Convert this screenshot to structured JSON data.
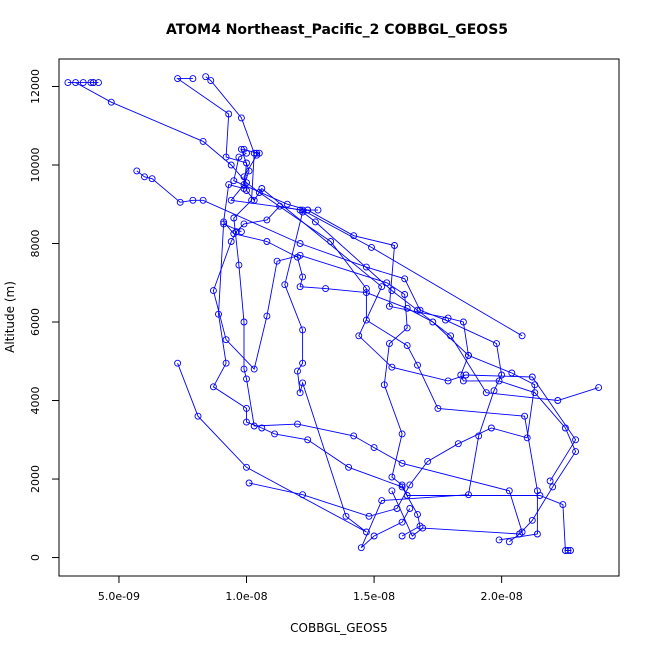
{
  "chart_data": {
    "type": "scatter",
    "title": "ATOM4 Northeast_Pacific_2 COBBGL_GEOS5",
    "xlabel": "COBBGL_GEOS5",
    "ylabel": "Altitude (m)",
    "xlim": [
      2.65e-09,
      2.46e-08
    ],
    "ylim": [
      -470,
      12700
    ],
    "xticks": [
      5e-09,
      1e-08,
      1.5e-08,
      2e-08
    ],
    "xtick_labels": [
      "5.0e-09",
      "1.0e-08",
      "1.5e-08",
      "2.0e-08"
    ],
    "yticks": [
      0,
      2000,
      4000,
      6000,
      8000,
      10000,
      12000
    ],
    "ytick_labels": [
      "0",
      "2000",
      "4000",
      "6000",
      "8000",
      "10000",
      "12000"
    ],
    "grid": false,
    "line_color": "#0000ff",
    "marker": "open-circle",
    "series": [
      {
        "values": [
          [
            2.27e-08,
            180
          ],
          [
            2.26e-08,
            180
          ],
          [
            2.25e-08,
            180
          ],
          [
            2.24e-08,
            1350
          ],
          [
            2.15e-08,
            1580
          ],
          [
            1.63e-08,
            1580
          ],
          [
            1.61e-08,
            1850
          ],
          [
            1.57e-08,
            2050
          ],
          [
            1.61e-08,
            3150
          ],
          [
            1.54e-08,
            4400
          ],
          [
            1.56e-08,
            5450
          ],
          [
            1.63e-08,
            5850
          ],
          [
            1.62e-08,
            6700
          ],
          [
            1.55e-08,
            7000
          ],
          [
            1.21e-08,
            7700
          ],
          [
            1.12e-08,
            7550
          ],
          [
            1.08e-08,
            6150
          ],
          [
            1.03e-08,
            4800
          ],
          [
            9.2e-09,
            5550
          ],
          [
            8.7e-09,
            6800
          ],
          [
            9.4e-09,
            8050
          ],
          [
            9.6e-09,
            8300
          ],
          [
            9.9e-09,
            8500
          ],
          [
            1.08e-08,
            8600
          ],
          [
            1.13e-08,
            8950
          ],
          [
            1.21e-08,
            8850
          ],
          [
            1.27e-08,
            8550
          ],
          [
            1.57e-08,
            6800
          ],
          [
            1.67e-08,
            6300
          ],
          [
            1.8e-08,
            5650
          ],
          [
            1.94e-08,
            4200
          ],
          [
            2.22e-08,
            4000
          ],
          [
            2.38e-08,
            4330
          ]
        ]
      },
      {
        "values": [
          [
            2.08e-08,
            5650
          ],
          [
            1.49e-08,
            7900
          ],
          [
            1.22e-08,
            8850
          ],
          [
            9.4e-09,
            9100
          ],
          [
            9.9e-09,
            9500
          ],
          [
            1.01e-08,
            9850
          ],
          [
            9.8e-09,
            10400
          ],
          [
            9.9e-09,
            10400
          ],
          [
            1.04e-08,
            10300
          ],
          [
            1.05e-08,
            10300
          ],
          [
            1.04e-08,
            10250
          ],
          [
            9.9e-09,
            9700
          ],
          [
            1e-08,
            9350
          ],
          [
            1.03e-08,
            9100
          ],
          [
            1.06e-08,
            9400
          ],
          [
            1.53e-08,
            6900
          ],
          [
            1.44e-08,
            5650
          ],
          [
            1.57e-08,
            4850
          ],
          [
            1.79e-08,
            4500
          ],
          [
            1.86e-08,
            4650
          ],
          [
            2.12e-08,
            4600
          ],
          [
            2.29e-08,
            3000
          ],
          [
            2.19e-08,
            1950
          ]
        ]
      },
      {
        "values": [
          [
            1.01e-08,
            1900
          ],
          [
            1.22e-08,
            1600
          ],
          [
            1.48e-08,
            1050
          ],
          [
            1.59e-08,
            1250
          ],
          [
            1.64e-08,
            1850
          ],
          [
            1.71e-08,
            2450
          ],
          [
            1.83e-08,
            2900
          ],
          [
            1.96e-08,
            3300
          ],
          [
            2.1e-08,
            3050
          ],
          [
            2.13e-08,
            4400
          ],
          [
            2.04e-08,
            4700
          ],
          [
            1.87e-08,
            5150
          ],
          [
            1.85e-08,
            6000
          ],
          [
            1.79e-08,
            6100
          ],
          [
            1.56e-08,
            6400
          ],
          [
            1.58e-08,
            7950
          ],
          [
            1.42e-08,
            8200
          ],
          [
            1.24e-08,
            8850
          ],
          [
            1.16e-08,
            9000
          ],
          [
            9.5e-09,
            9600
          ],
          [
            9.7e-09,
            10200
          ],
          [
            1e-08,
            10300
          ]
        ]
      },
      {
        "values": [
          [
            7.9e-09,
            12200
          ],
          [
            7.3e-09,
            12200
          ],
          [
            9.3e-09,
            11300
          ],
          [
            9.2e-09,
            10200
          ],
          [
            1e-08,
            10050
          ],
          [
            9.9e-09,
            9400
          ],
          [
            9.3e-09,
            9500
          ],
          [
            9.1e-09,
            8550
          ],
          [
            9.5e-09,
            8250
          ],
          [
            1.08e-08,
            8050
          ],
          [
            1.2e-08,
            7650
          ],
          [
            1.22e-08,
            7150
          ],
          [
            1.21e-08,
            6900
          ],
          [
            1.31e-08,
            6850
          ],
          [
            1.47e-08,
            6750
          ],
          [
            1.63e-08,
            6350
          ],
          [
            1.73e-08,
            6000
          ],
          [
            1.87e-08,
            5150
          ],
          [
            1.84e-08,
            4650
          ],
          [
            1.85e-08,
            4500
          ],
          [
            1.99e-08,
            4500
          ],
          [
            2.13e-08,
            4200
          ],
          [
            2.25e-08,
            3300
          ],
          [
            2.29e-08,
            2700
          ],
          [
            2.2e-08,
            1800
          ],
          [
            2.12e-08,
            950
          ],
          [
            2.07e-08,
            600
          ],
          [
            1.69e-08,
            750
          ],
          [
            1.65e-08,
            550
          ],
          [
            1.57e-08,
            1700
          ]
        ]
      },
      {
        "values": [
          [
            3e-09,
            12100
          ],
          [
            3.6e-09,
            12100
          ],
          [
            4e-09,
            12100
          ],
          [
            4.2e-09,
            12100
          ],
          [
            3.9e-09,
            12100
          ],
          [
            4e-09,
            12100
          ],
          [
            3.3e-09,
            12100
          ],
          [
            4.7e-09,
            11600
          ],
          [
            8.3e-09,
            10600
          ],
          [
            9.4e-09,
            10000
          ],
          [
            1e-08,
            9550
          ],
          [
            1.05e-08,
            9300
          ],
          [
            1.33e-08,
            8050
          ],
          [
            1.47e-08,
            6850
          ],
          [
            1.47e-08,
            6050
          ],
          [
            1.63e-08,
            5400
          ],
          [
            1.67e-08,
            4900
          ],
          [
            1.75e-08,
            3800
          ],
          [
            2.09e-08,
            3600
          ],
          [
            2.14e-08,
            1700
          ],
          [
            2.14e-08,
            600
          ],
          [
            1.99e-08,
            450
          ]
        ]
      },
      {
        "values": [
          [
            5.7e-09,
            9850
          ],
          [
            6e-09,
            9700
          ],
          [
            6.3e-09,
            9650
          ],
          [
            7.4e-09,
            9050
          ],
          [
            7.9e-09,
            9100
          ],
          [
            8.3e-09,
            9100
          ],
          [
            1.21e-08,
            8000
          ],
          [
            1.47e-08,
            7400
          ],
          [
            1.62e-08,
            7100
          ],
          [
            1.68e-08,
            6300
          ],
          [
            1.78e-08,
            6050
          ],
          [
            1.98e-08,
            5450
          ],
          [
            2e-08,
            4650
          ],
          [
            1.97e-08,
            4250
          ],
          [
            1.91e-08,
            3100
          ],
          [
            1.87e-08,
            1600
          ],
          [
            1.53e-08,
            1450
          ],
          [
            1.45e-08,
            250
          ],
          [
            1.5e-08,
            550
          ],
          [
            1.61e-08,
            900
          ],
          [
            1.64e-08,
            1250
          ]
        ]
      },
      {
        "values": [
          [
            9.8e-09,
            8300
          ],
          [
            9.1e-09,
            8500
          ],
          [
            8.9e-09,
            6200
          ],
          [
            9.2e-09,
            4950
          ],
          [
            8.7e-09,
            4350
          ],
          [
            1e-08,
            3800
          ],
          [
            1e-08,
            3450
          ],
          [
            1.06e-08,
            3300
          ],
          [
            1.11e-08,
            3150
          ],
          [
            1.24e-08,
            3000
          ],
          [
            1.4e-08,
            2300
          ],
          [
            1.61e-08,
            1800
          ],
          [
            1.67e-08,
            1100
          ],
          [
            1.68e-08,
            800
          ],
          [
            1.61e-08,
            550
          ]
        ]
      },
      {
        "values": [
          [
            8.4e-09,
            12250
          ],
          [
            8.6e-09,
            12150
          ],
          [
            9.8e-09,
            11200
          ],
          [
            1.03e-08,
            10300
          ],
          [
            1.02e-08,
            9100
          ],
          [
            9.5e-09,
            8650
          ],
          [
            9.7e-09,
            7450
          ],
          [
            9.9e-09,
            6000
          ],
          [
            9.9e-09,
            4800
          ],
          [
            1e-08,
            4550
          ],
          [
            1.03e-08,
            3350
          ],
          [
            1.2e-08,
            3400
          ],
          [
            1.42e-08,
            3100
          ],
          [
            1.5e-08,
            2800
          ],
          [
            1.61e-08,
            2400
          ],
          [
            2.03e-08,
            1700
          ],
          [
            2.08e-08,
            650
          ],
          [
            2.03e-08,
            400
          ]
        ]
      },
      {
        "values": [
          [
            7.3e-09,
            4950
          ],
          [
            8.1e-09,
            3600
          ],
          [
            1e-08,
            2300
          ],
          [
            1.47e-08,
            650
          ],
          [
            1.39e-08,
            1050
          ],
          [
            1.22e-08,
            4450
          ],
          [
            1.21e-08,
            4200
          ],
          [
            1.2e-08,
            4750
          ],
          [
            1.22e-08,
            4950
          ],
          [
            1.22e-08,
            5800
          ],
          [
            1.15e-08,
            6950
          ],
          [
            1.22e-08,
            8800
          ],
          [
            1.24e-08,
            8850
          ],
          [
            1.28e-08,
            8850
          ]
        ]
      }
    ]
  }
}
